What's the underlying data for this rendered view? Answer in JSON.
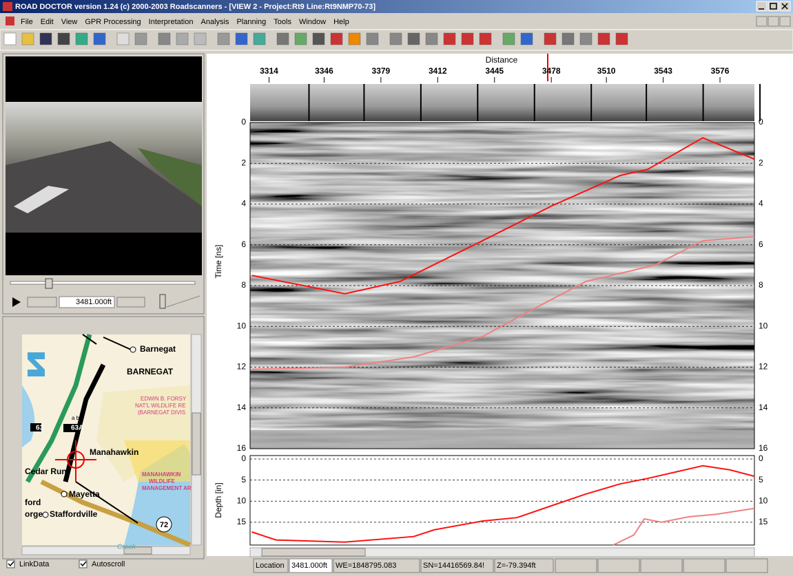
{
  "window": {
    "title": "ROAD DOCTOR version 1.24 (c) 2000-2003 Roadscanners - [VIEW 2 - Project:Rt9  Line:Rt9NMP70-73]"
  },
  "menu": [
    "File",
    "Edit",
    "View",
    "GPR Processing",
    "Interpretation",
    "Analysis",
    "Planning",
    "Tools",
    "Window",
    "Help"
  ],
  "video": {
    "position": "3481.000ft"
  },
  "map": {
    "labels": [
      "Barnegat",
      "BARNEGAT",
      "EDWIN B. FORSY",
      "NAT'L WILDLIFE RE",
      "(BARNEGAT DIVIS",
      "63",
      "63A",
      "a b",
      "Manahawkin",
      "Cedar Run",
      "Mayetta",
      "ford",
      "orge",
      "Staffordville",
      "MANAHAWKIN",
      "WILDLIFE",
      "MANAGEMENT AR",
      "72",
      "Creek"
    ]
  },
  "options": [
    "LinkData",
    "Autoscroll"
  ],
  "radargram": {
    "type": "line",
    "x_label": "Distance",
    "y_label": "Time [ns]",
    "xlim": [
      3303,
      3596
    ],
    "xticks": [
      3314,
      3346,
      3379,
      3412,
      3445,
      3478,
      3510,
      3543,
      3576
    ],
    "ylim": [
      0,
      16
    ],
    "yticks": [
      0,
      2,
      4,
      6,
      8,
      10,
      12,
      14,
      16
    ],
    "series": [
      {
        "color": "#ff1010",
        "x": [
          3304,
          3358,
          3390,
          3438,
          3478,
          3518,
          3534,
          3566,
          3596
        ],
        "values": [
          7.5,
          8.4,
          7.8,
          5.8,
          4.1,
          2.6,
          2.3,
          0.75,
          1.8
        ]
      },
      {
        "color": "#f08080",
        "x": [
          3304,
          3358,
          3398,
          3438,
          3462,
          3498,
          3538,
          3566,
          3596
        ],
        "values": [
          12.1,
          12.0,
          11.5,
          10.5,
          9.4,
          7.8,
          7.0,
          5.8,
          5.6
        ]
      }
    ]
  },
  "depth": {
    "type": "line",
    "y_label": "Depth [in]",
    "xlim": [
      3303,
      3596
    ],
    "ylim": [
      0,
      20.4
    ],
    "yticks": [
      0,
      5,
      10,
      15
    ],
    "series": [
      {
        "color": "#ff1010",
        "x": [
          3304,
          3318,
          3358,
          3398,
          3410,
          3438,
          3458,
          3478,
          3498,
          3518,
          3534,
          3550,
          3566,
          3582,
          3596
        ],
        "values": [
          17.3,
          19.2,
          19.7,
          18.4,
          16.8,
          14.7,
          13.9,
          11.1,
          8.3,
          5.9,
          4.6,
          3.1,
          1.6,
          2.6,
          4.1
        ]
      },
      {
        "color": "#f08080",
        "x": [
          3514,
          3526,
          3532,
          3542,
          3558,
          3574,
          3596
        ],
        "values": [
          20.4,
          18.0,
          14.2,
          15.0,
          13.7,
          13.1,
          11.7
        ]
      }
    ]
  },
  "status": {
    "fields": [
      "Location",
      "3481.000ft",
      "WE=1848795.083",
      "SN=14416569.84!",
      "Z=-79.394ft"
    ]
  }
}
